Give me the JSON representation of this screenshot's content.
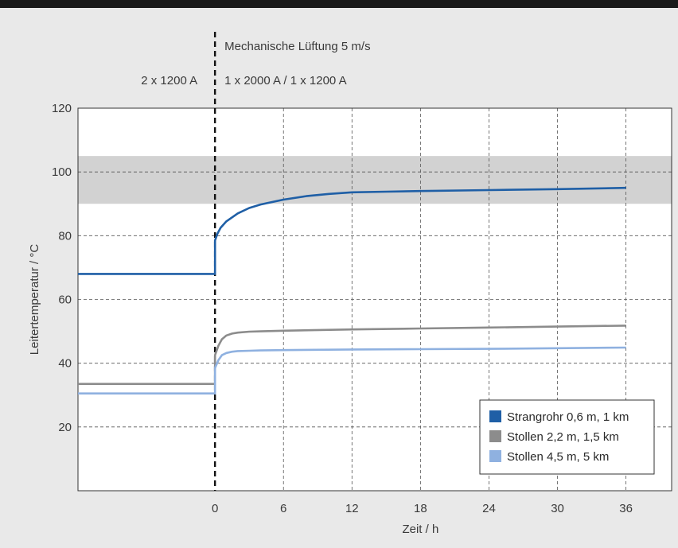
{
  "chart_data": {
    "type": "line",
    "xlabel": "Zeit / h",
    "ylabel": "Leitertemperatur / °C",
    "xlim": [
      -12,
      40
    ],
    "ylim": [
      0,
      120
    ],
    "x_ticks": [
      0,
      6,
      12,
      18,
      24,
      30,
      36
    ],
    "y_ticks": [
      20,
      40,
      60,
      80,
      100,
      120
    ],
    "grid": true,
    "band": {
      "y_from": 90,
      "y_to": 105,
      "color": "#d2d2d2"
    },
    "event_line": {
      "x": 0,
      "style": "dashed"
    },
    "annotations": {
      "top": "Mechanische Lüftung 5 m/s",
      "left": "2 x 1200 A",
      "right": "1 x 2000 A / 1 x 1200 A"
    },
    "legend_position": "bottom-right",
    "series": [
      {
        "name": "Strangrohr 0,6 m, 1 km",
        "color": "#1f5fa6",
        "x": [
          -12,
          0,
          0,
          0.2,
          0.5,
          1,
          2,
          3,
          4,
          6,
          8,
          10,
          12,
          15,
          18,
          24,
          30,
          36
        ],
        "y": [
          68,
          68,
          78.5,
          80.5,
          82.5,
          84.5,
          87,
          88.7,
          89.8,
          91.3,
          92.4,
          93.1,
          93.6,
          93.8,
          94,
          94.3,
          94.6,
          95
        ]
      },
      {
        "name": "Stollen 2,2 m, 1,5 km",
        "color": "#8c8c8c",
        "x": [
          -12,
          0,
          0,
          0.3,
          0.6,
          1,
          1.5,
          2,
          3,
          4,
          6,
          12,
          18,
          24,
          30,
          36
        ],
        "y": [
          33.5,
          33.5,
          42.5,
          45.5,
          47.5,
          48.7,
          49.3,
          49.6,
          49.9,
          50,
          50.2,
          50.6,
          50.9,
          51.2,
          51.5,
          51.8
        ]
      },
      {
        "name": "Stollen 4,5 m, 5 km",
        "color": "#8fb1e0",
        "x": [
          -12,
          0,
          0,
          0.3,
          0.6,
          1,
          1.5,
          2,
          3,
          4,
          6,
          12,
          18,
          24,
          30,
          36
        ],
        "y": [
          30.5,
          30.5,
          38.5,
          41,
          42.5,
          43.2,
          43.6,
          43.8,
          43.9,
          44,
          44.1,
          44.3,
          44.4,
          44.5,
          44.7,
          44.9
        ]
      }
    ]
  }
}
